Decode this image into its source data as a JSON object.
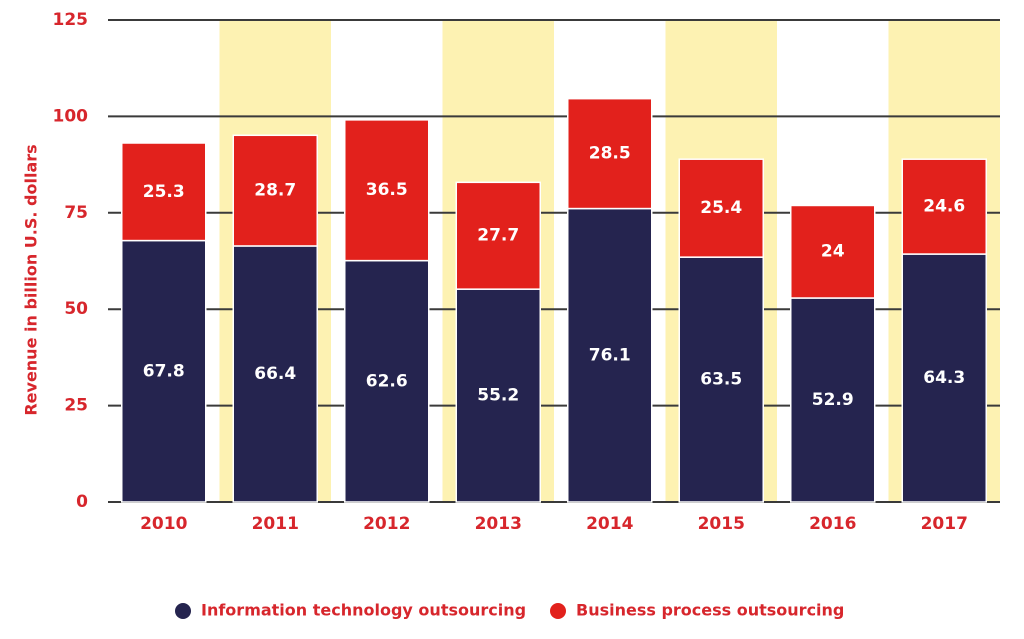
{
  "chart_data": {
    "type": "stacked_bar",
    "y_label": "Revenue in billion U.S. dollars",
    "categories": [
      "2010",
      "2011",
      "2012",
      "2013",
      "2014",
      "2015",
      "2016",
      "2017"
    ],
    "series": [
      {
        "name": "Information technology outsourcing",
        "color": "#25244f",
        "values": [
          67.8,
          66.4,
          62.6,
          55.2,
          76.1,
          63.5,
          52.9,
          64.3
        ]
      },
      {
        "name": "Business process outsourcing",
        "color": "#e2211c",
        "values": [
          25.3,
          28.7,
          36.5,
          27.7,
          28.5,
          25.4,
          24,
          24.6
        ]
      }
    ],
    "ylim": [
      0,
      125
    ],
    "yticks": [
      0,
      25,
      50,
      75,
      100,
      125
    ],
    "grid": true,
    "band_color": "#fdf2b2",
    "label_color": "#d7262c",
    "legend": "bottom"
  }
}
